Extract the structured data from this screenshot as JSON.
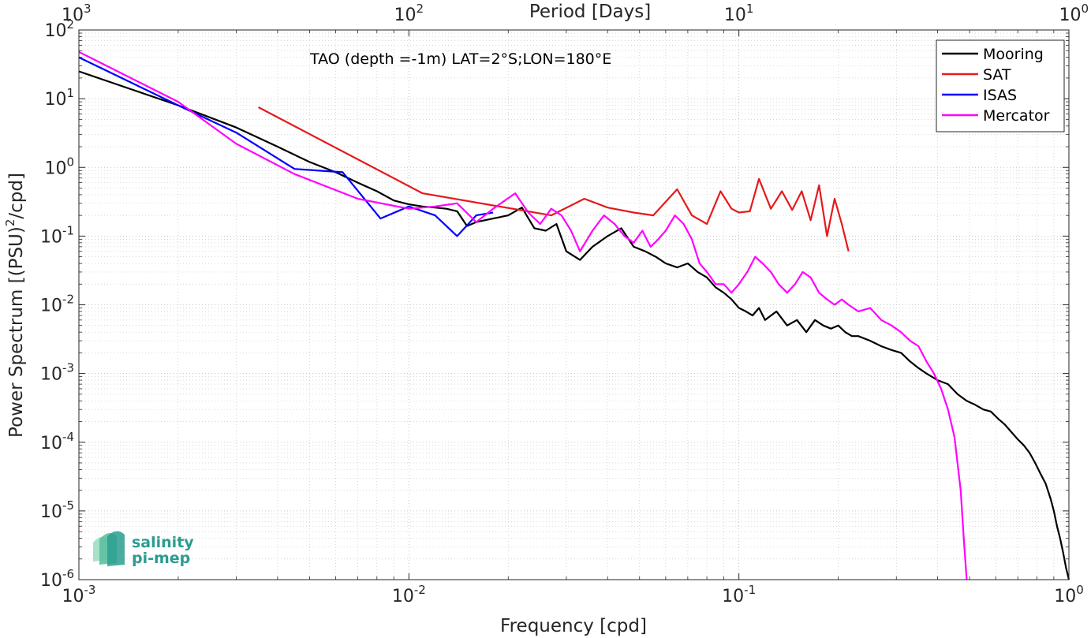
{
  "chart_data": {
    "type": "line",
    "title": "",
    "annotation": "TAO (depth =-1m) LAT=2°S;LON=180°E",
    "xlabel": "Frequency [cpd]",
    "ylabel_pre": "Power Spectrum [(PSU)",
    "ylabel_sup": "2",
    "ylabel_post": "/cpd]",
    "top_xlabel": "Period [Days]",
    "xscale": "log",
    "yscale": "log",
    "xlim": [
      0.001,
      1
    ],
    "ylim": [
      1e-06,
      100
    ],
    "grid": true,
    "legend_position": "top-right",
    "x_ticks": [
      {
        "value": 0.001,
        "base": "10",
        "exp": "-3"
      },
      {
        "value": 0.01,
        "base": "10",
        "exp": "-2"
      },
      {
        "value": 0.1,
        "base": "10",
        "exp": "-1"
      },
      {
        "value": 1,
        "base": "10",
        "exp": "0"
      }
    ],
    "y_ticks": [
      {
        "value": 1e-06,
        "base": "10",
        "exp": "-6"
      },
      {
        "value": 1e-05,
        "base": "10",
        "exp": "-5"
      },
      {
        "value": 0.0001,
        "base": "10",
        "exp": "-4"
      },
      {
        "value": 0.001,
        "base": "10",
        "exp": "-3"
      },
      {
        "value": 0.01,
        "base": "10",
        "exp": "-2"
      },
      {
        "value": 0.1,
        "base": "10",
        "exp": "-1"
      },
      {
        "value": 1,
        "base": "10",
        "exp": "0"
      },
      {
        "value": 10,
        "base": "10",
        "exp": "1"
      },
      {
        "value": 100,
        "base": "10",
        "exp": "2"
      }
    ],
    "top_ticks": [
      {
        "value": 0.001,
        "base": "10",
        "exp": "3"
      },
      {
        "value": 0.01,
        "base": "10",
        "exp": "2"
      },
      {
        "value": 0.1,
        "base": "10",
        "exp": "1"
      },
      {
        "value": 1,
        "base": "10",
        "exp": "0"
      }
    ],
    "series": [
      {
        "name": "Mooring",
        "color": "#000000",
        "x": [
          0.001,
          0.002,
          0.003,
          0.004,
          0.005,
          0.006,
          0.007,
          0.008,
          0.009,
          0.01,
          0.011,
          0.012,
          0.013,
          0.014,
          0.015,
          0.016,
          0.018,
          0.02,
          0.022,
          0.024,
          0.026,
          0.028,
          0.03,
          0.033,
          0.036,
          0.04,
          0.044,
          0.048,
          0.052,
          0.056,
          0.06,
          0.065,
          0.07,
          0.075,
          0.08,
          0.085,
          0.09,
          0.095,
          0.1,
          0.105,
          0.11,
          0.115,
          0.12,
          0.13,
          0.14,
          0.15,
          0.16,
          0.17,
          0.18,
          0.19,
          0.2,
          0.21,
          0.22,
          0.23,
          0.25,
          0.27,
          0.29,
          0.31,
          0.33,
          0.35,
          0.37,
          0.4,
          0.43,
          0.46,
          0.49,
          0.52,
          0.55,
          0.58,
          0.61,
          0.64,
          0.67,
          0.7,
          0.73,
          0.76,
          0.79,
          0.82,
          0.85,
          0.88,
          0.9,
          0.92,
          0.94,
          0.96,
          0.98,
          1.0
        ],
        "values": [
          25,
          8,
          3.8,
          2.0,
          1.2,
          0.85,
          0.6,
          0.45,
          0.33,
          0.29,
          0.27,
          0.26,
          0.25,
          0.23,
          0.14,
          0.16,
          0.18,
          0.2,
          0.26,
          0.13,
          0.12,
          0.15,
          0.06,
          0.045,
          0.07,
          0.1,
          0.13,
          0.07,
          0.06,
          0.05,
          0.04,
          0.035,
          0.04,
          0.03,
          0.025,
          0.018,
          0.015,
          0.012,
          0.009,
          0.008,
          0.007,
          0.009,
          0.006,
          0.008,
          0.005,
          0.006,
          0.004,
          0.006,
          0.005,
          0.0045,
          0.005,
          0.004,
          0.0035,
          0.0035,
          0.003,
          0.0025,
          0.0022,
          0.002,
          0.0015,
          0.0012,
          0.001,
          0.0008,
          0.0007,
          0.0005,
          0.0004,
          0.00035,
          0.0003,
          0.00028,
          0.00022,
          0.00018,
          0.00014,
          0.00011,
          9e-05,
          7e-05,
          5e-05,
          3.5e-05,
          2.5e-05,
          1.5e-05,
          1e-05,
          6e-06,
          4e-06,
          2.5e-06,
          1.5e-06,
          1e-06
        ]
      },
      {
        "name": "SAT",
        "color": "#e41a1c",
        "x": [
          0.0035,
          0.011,
          0.027,
          0.034,
          0.04,
          0.048,
          0.055,
          0.065,
          0.072,
          0.08,
          0.088,
          0.095,
          0.1,
          0.108,
          0.115,
          0.125,
          0.135,
          0.145,
          0.155,
          0.165,
          0.175,
          0.185,
          0.195,
          0.205,
          0.215
        ],
        "values": [
          7.5,
          0.42,
          0.2,
          0.35,
          0.26,
          0.22,
          0.2,
          0.48,
          0.2,
          0.15,
          0.45,
          0.25,
          0.22,
          0.23,
          0.68,
          0.25,
          0.45,
          0.24,
          0.45,
          0.17,
          0.55,
          0.1,
          0.35,
          0.15,
          0.06
        ]
      },
      {
        "name": "ISAS",
        "color": "#0000ff",
        "x": [
          0.001,
          0.002,
          0.003,
          0.0045,
          0.0063,
          0.0082,
          0.01,
          0.012,
          0.014,
          0.016,
          0.018
        ],
        "values": [
          40,
          8,
          3.2,
          0.95,
          0.85,
          0.18,
          0.27,
          0.2,
          0.1,
          0.2,
          0.22
        ]
      },
      {
        "name": "Mercator",
        "color": "#ff00ff",
        "x": [
          0.001,
          0.002,
          0.003,
          0.0045,
          0.007,
          0.01,
          0.012,
          0.014,
          0.016,
          0.018,
          0.021,
          0.023,
          0.025,
          0.027,
          0.029,
          0.031,
          0.033,
          0.036,
          0.039,
          0.042,
          0.045,
          0.048,
          0.051,
          0.054,
          0.057,
          0.06,
          0.064,
          0.068,
          0.072,
          0.076,
          0.08,
          0.085,
          0.09,
          0.095,
          0.1,
          0.106,
          0.112,
          0.118,
          0.125,
          0.132,
          0.14,
          0.148,
          0.156,
          0.165,
          0.175,
          0.185,
          0.195,
          0.205,
          0.215,
          0.23,
          0.25,
          0.27,
          0.29,
          0.31,
          0.33,
          0.35,
          0.37,
          0.39,
          0.41,
          0.43,
          0.45,
          0.47,
          0.48,
          0.49
        ],
        "values": [
          48,
          9,
          2.2,
          0.8,
          0.35,
          0.25,
          0.27,
          0.3,
          0.16,
          0.25,
          0.42,
          0.22,
          0.15,
          0.25,
          0.2,
          0.12,
          0.06,
          0.12,
          0.2,
          0.15,
          0.1,
          0.08,
          0.12,
          0.07,
          0.09,
          0.12,
          0.2,
          0.15,
          0.09,
          0.04,
          0.03,
          0.02,
          0.02,
          0.015,
          0.02,
          0.03,
          0.05,
          0.04,
          0.03,
          0.02,
          0.015,
          0.02,
          0.03,
          0.025,
          0.015,
          0.012,
          0.01,
          0.012,
          0.01,
          0.008,
          0.009,
          0.006,
          0.005,
          0.004,
          0.003,
          0.0025,
          0.0015,
          0.001,
          0.0006,
          0.0003,
          0.00012,
          2e-05,
          4e-06,
          1e-06
        ]
      }
    ]
  },
  "logo": {
    "line1": "salinity",
    "line2": "pi-mep"
  }
}
